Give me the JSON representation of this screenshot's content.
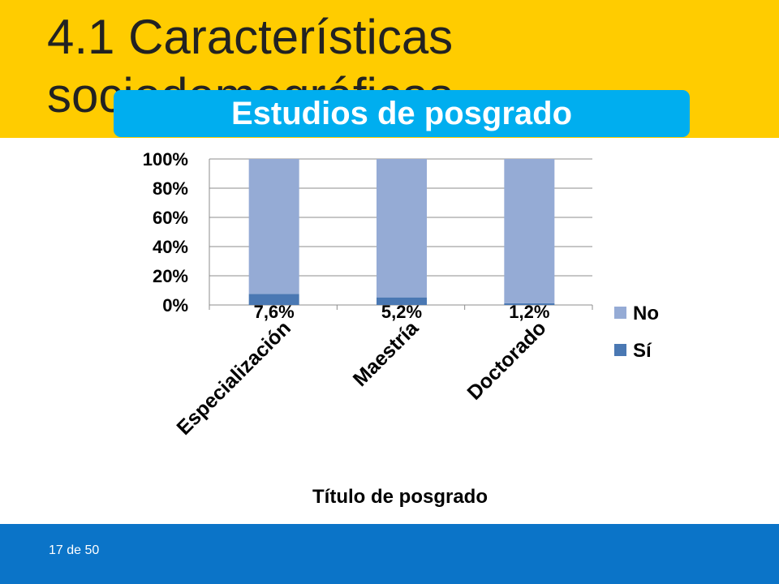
{
  "slide": {
    "title": "4.1 Características\nsociodemográficas",
    "banner": "Estudios de posgrado",
    "page_number": "17 de 50"
  },
  "colors": {
    "header": "#ffcc00",
    "banner": "#00aeef",
    "footer": "#0b74c8",
    "series_no": "#95abd5",
    "series_si": "#4a78b3"
  },
  "chart_data": {
    "type": "bar",
    "stacked": true,
    "categories": [
      "Especialización",
      "Maestría",
      "Doctorado"
    ],
    "series": [
      {
        "name": "Sí",
        "values": [
          7.6,
          5.2,
          1.2
        ],
        "labels": [
          "7,6%",
          "5,2%",
          "1,2%"
        ],
        "color": "#4a78b3"
      },
      {
        "name": "No",
        "values": [
          92.4,
          94.8,
          98.8
        ],
        "color": "#95abd5"
      }
    ],
    "xlabel": "Título de posgrado",
    "ylabel": "",
    "ylim": [
      0,
      100
    ],
    "yticks": [
      "0%",
      "20%",
      "40%",
      "60%",
      "80%",
      "100%"
    ],
    "legend": {
      "position": "right",
      "entries": [
        "No",
        "Sí"
      ]
    },
    "grid": true
  }
}
